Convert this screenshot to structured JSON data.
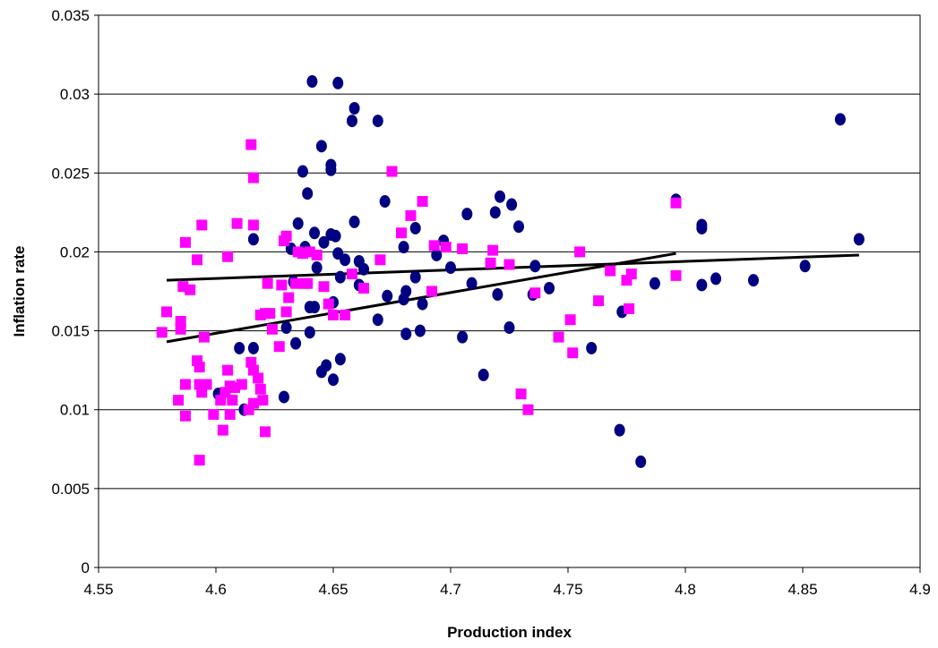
{
  "chart_data": {
    "type": "scatter",
    "title": "",
    "xlabel": "Production index",
    "ylabel": "Inflation rate",
    "xlim": [
      4.55,
      4.9
    ],
    "ylim": [
      0,
      0.035
    ],
    "x_ticks": [
      "4.55",
      "4.6",
      "4.65",
      "4.7",
      "4.75",
      "4.8",
      "4.85",
      "4.9"
    ],
    "y_ticks": [
      "0",
      "0.005",
      "0.01",
      "0.015",
      "0.02",
      "0.025",
      "0.03",
      "0.035"
    ],
    "grid": "horizontal",
    "legend": "none",
    "series": [
      {
        "marker": "circle",
        "color": "#000080",
        "points": [
          [
            4.641,
            0.0308
          ],
          [
            4.652,
            0.0307
          ],
          [
            4.659,
            0.0291
          ],
          [
            4.658,
            0.0283
          ],
          [
            4.669,
            0.0283
          ],
          [
            4.645,
            0.0267
          ],
          [
            4.649,
            0.0255
          ],
          [
            4.649,
            0.0252
          ],
          [
            4.637,
            0.0251
          ],
          [
            4.639,
            0.0237
          ],
          [
            4.672,
            0.0232
          ],
          [
            4.721,
            0.0235
          ],
          [
            4.726,
            0.023
          ],
          [
            4.719,
            0.0225
          ],
          [
            4.707,
            0.0224
          ],
          [
            4.659,
            0.0219
          ],
          [
            4.635,
            0.0218
          ],
          [
            4.685,
            0.0215
          ],
          [
            4.642,
            0.0212
          ],
          [
            4.649,
            0.0211
          ],
          [
            4.651,
            0.021
          ],
          [
            4.729,
            0.0216
          ],
          [
            4.616,
            0.0208
          ],
          [
            4.646,
            0.0206
          ],
          [
            4.697,
            0.0207
          ],
          [
            4.638,
            0.0203
          ],
          [
            4.68,
            0.0203
          ],
          [
            4.632,
            0.0202
          ],
          [
            4.652,
            0.0199
          ],
          [
            4.655,
            0.0195
          ],
          [
            4.661,
            0.0194
          ],
          [
            4.694,
            0.0198
          ],
          [
            4.643,
            0.019
          ],
          [
            4.663,
            0.0189
          ],
          [
            4.7,
            0.019
          ],
          [
            4.736,
            0.0191
          ],
          [
            4.653,
            0.0184
          ],
          [
            4.685,
            0.0184
          ],
          [
            4.633,
            0.0181
          ],
          [
            4.709,
            0.018
          ],
          [
            4.65,
            0.0168
          ],
          [
            4.661,
            0.0179
          ],
          [
            4.681,
            0.0175
          ],
          [
            4.72,
            0.0173
          ],
          [
            4.673,
            0.0172
          ],
          [
            4.68,
            0.017
          ],
          [
            4.688,
            0.0167
          ],
          [
            4.64,
            0.0165
          ],
          [
            4.642,
            0.0165
          ],
          [
            4.742,
            0.0177
          ],
          [
            4.735,
            0.0173
          ],
          [
            4.669,
            0.0157
          ],
          [
            4.63,
            0.0152
          ],
          [
            4.725,
            0.0152
          ],
          [
            4.64,
            0.0149
          ],
          [
            4.681,
            0.0148
          ],
          [
            4.687,
            0.015
          ],
          [
            4.705,
            0.0146
          ],
          [
            4.634,
            0.0142
          ],
          [
            4.61,
            0.0139
          ],
          [
            4.616,
            0.0139
          ],
          [
            4.76,
            0.0139
          ],
          [
            4.653,
            0.0132
          ],
          [
            4.647,
            0.0128
          ],
          [
            4.645,
            0.0124
          ],
          [
            4.714,
            0.0122
          ],
          [
            4.65,
            0.0119
          ],
          [
            4.601,
            0.011
          ],
          [
            4.629,
            0.0108
          ],
          [
            4.612,
            0.01
          ],
          [
            4.773,
            0.0162
          ],
          [
            4.772,
            0.0087
          ],
          [
            4.781,
            0.0067
          ],
          [
            4.787,
            0.018
          ],
          [
            4.796,
            0.0233
          ],
          [
            4.807,
            0.0217
          ],
          [
            4.807,
            0.0215
          ],
          [
            4.807,
            0.0179
          ],
          [
            4.813,
            0.0183
          ],
          [
            4.829,
            0.0182
          ],
          [
            4.851,
            0.0191
          ],
          [
            4.866,
            0.0284
          ],
          [
            4.874,
            0.0208
          ]
        ]
      },
      {
        "marker": "square",
        "color": "#ff00ff",
        "points": [
          [
            4.577,
            0.0149
          ],
          [
            4.579,
            0.0162
          ],
          [
            4.584,
            0.0106
          ],
          [
            4.585,
            0.0151
          ],
          [
            4.585,
            0.0156
          ],
          [
            4.586,
            0.0178
          ],
          [
            4.587,
            0.0206
          ],
          [
            4.587,
            0.0116
          ],
          [
            4.587,
            0.0096
          ],
          [
            4.589,
            0.0176
          ],
          [
            4.592,
            0.0195
          ],
          [
            4.592,
            0.0131
          ],
          [
            4.593,
            0.0116
          ],
          [
            4.593,
            0.0127
          ],
          [
            4.593,
            0.0068
          ],
          [
            4.594,
            0.0217
          ],
          [
            4.594,
            0.0111
          ],
          [
            4.595,
            0.0146
          ],
          [
            4.596,
            0.0116
          ],
          [
            4.599,
            0.0097
          ],
          [
            4.602,
            0.0106
          ],
          [
            4.603,
            0.0087
          ],
          [
            4.604,
            0.0111
          ],
          [
            4.605,
            0.0197
          ],
          [
            4.605,
            0.0125
          ],
          [
            4.606,
            0.0115
          ],
          [
            4.606,
            0.0097
          ],
          [
            4.607,
            0.0106
          ],
          [
            4.608,
            0.0114
          ],
          [
            4.609,
            0.0218
          ],
          [
            4.611,
            0.0116
          ],
          [
            4.614,
            0.01
          ],
          [
            4.615,
            0.0268
          ],
          [
            4.615,
            0.013
          ],
          [
            4.616,
            0.0247
          ],
          [
            4.616,
            0.0217
          ],
          [
            4.616,
            0.0125
          ],
          [
            4.616,
            0.0104
          ],
          [
            4.618,
            0.012
          ],
          [
            4.619,
            0.016
          ],
          [
            4.619,
            0.0113
          ],
          [
            4.62,
            0.0106
          ],
          [
            4.621,
            0.0161
          ],
          [
            4.621,
            0.0086
          ],
          [
            4.622,
            0.018
          ],
          [
            4.623,
            0.0161
          ],
          [
            4.624,
            0.0151
          ],
          [
            4.627,
            0.014
          ],
          [
            4.628,
            0.0179
          ],
          [
            4.629,
            0.0207
          ],
          [
            4.63,
            0.021
          ],
          [
            4.63,
            0.0162
          ],
          [
            4.631,
            0.0171
          ],
          [
            4.634,
            0.018
          ],
          [
            4.635,
            0.02
          ],
          [
            4.637,
            0.0199
          ],
          [
            4.638,
            0.018
          ],
          [
            4.639,
            0.018
          ],
          [
            4.64,
            0.02
          ],
          [
            4.643,
            0.0198
          ],
          [
            4.646,
            0.0178
          ],
          [
            4.648,
            0.0167
          ],
          [
            4.65,
            0.016
          ],
          [
            4.655,
            0.016
          ],
          [
            4.658,
            0.0186
          ],
          [
            4.663,
            0.0177
          ],
          [
            4.67,
            0.0195
          ],
          [
            4.675,
            0.0251
          ],
          [
            4.679,
            0.0212
          ],
          [
            4.683,
            0.0223
          ],
          [
            4.688,
            0.0232
          ],
          [
            4.692,
            0.0175
          ],
          [
            4.693,
            0.0204
          ],
          [
            4.698,
            0.0203
          ],
          [
            4.705,
            0.0202
          ],
          [
            4.717,
            0.0193
          ],
          [
            4.718,
            0.0201
          ],
          [
            4.725,
            0.0192
          ],
          [
            4.73,
            0.011
          ],
          [
            4.733,
            0.01
          ],
          [
            4.736,
            0.0174
          ],
          [
            4.746,
            0.0146
          ],
          [
            4.751,
            0.0157
          ],
          [
            4.752,
            0.0136
          ],
          [
            4.755,
            0.02
          ],
          [
            4.763,
            0.0169
          ],
          [
            4.768,
            0.0188
          ],
          [
            4.775,
            0.0182
          ],
          [
            4.776,
            0.0164
          ],
          [
            4.777,
            0.0186
          ],
          [
            4.796,
            0.0231
          ],
          [
            4.796,
            0.0185
          ]
        ]
      }
    ],
    "trendlines": [
      {
        "x": [
          4.579,
          4.874
        ],
        "y": [
          0.0182,
          0.0198
        ]
      },
      {
        "x": [
          4.579,
          4.796
        ],
        "y": [
          0.0143,
          0.0199
        ]
      }
    ]
  }
}
